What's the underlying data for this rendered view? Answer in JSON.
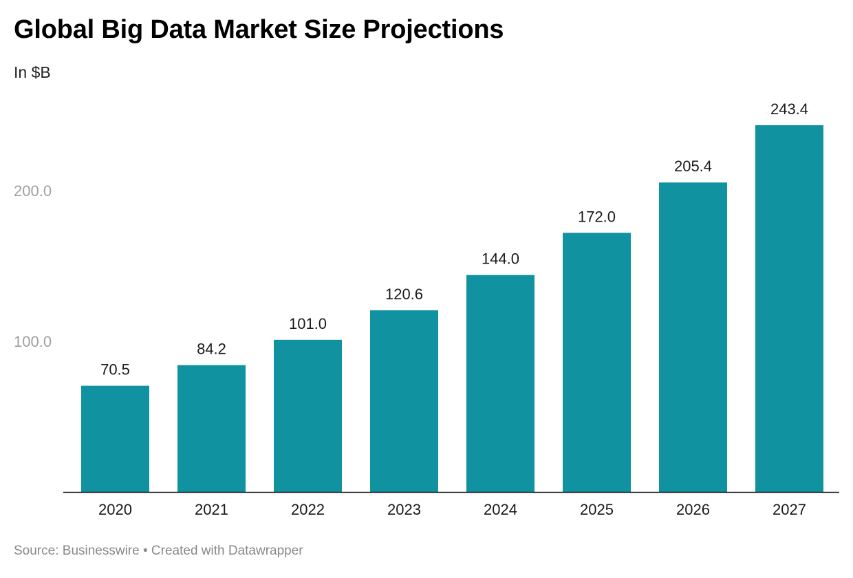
{
  "header": {
    "title": "Global Big Data Market Size Projections",
    "subtitle": "In $B"
  },
  "footer": {
    "source_prefix": "Source: ",
    "source": "Businesswire",
    "separator": " • ",
    "credit": "Created with Datawrapper"
  },
  "chart_data": {
    "type": "bar",
    "title": "Global Big Data Market Size Projections",
    "subtitle": "In $B",
    "xlabel": "",
    "ylabel": "",
    "categories": [
      "2020",
      "2021",
      "2022",
      "2023",
      "2024",
      "2025",
      "2026",
      "2027"
    ],
    "values": [
      70.5,
      84.2,
      101.0,
      120.6,
      144.0,
      172.0,
      205.4,
      243.4
    ],
    "value_labels": [
      "70.5",
      "84.2",
      "101.0",
      "120.6",
      "144.0",
      "172.0",
      "205.4",
      "243.4"
    ],
    "ylim": [
      0,
      243.4
    ],
    "yticks": [
      100,
      200
    ],
    "ytick_labels": [
      "100.0",
      "200.0"
    ],
    "grid": false,
    "bar_color": "#1192a0",
    "axis_color": "#1a1a1a",
    "tick_label_color": "#a0a0a0"
  }
}
